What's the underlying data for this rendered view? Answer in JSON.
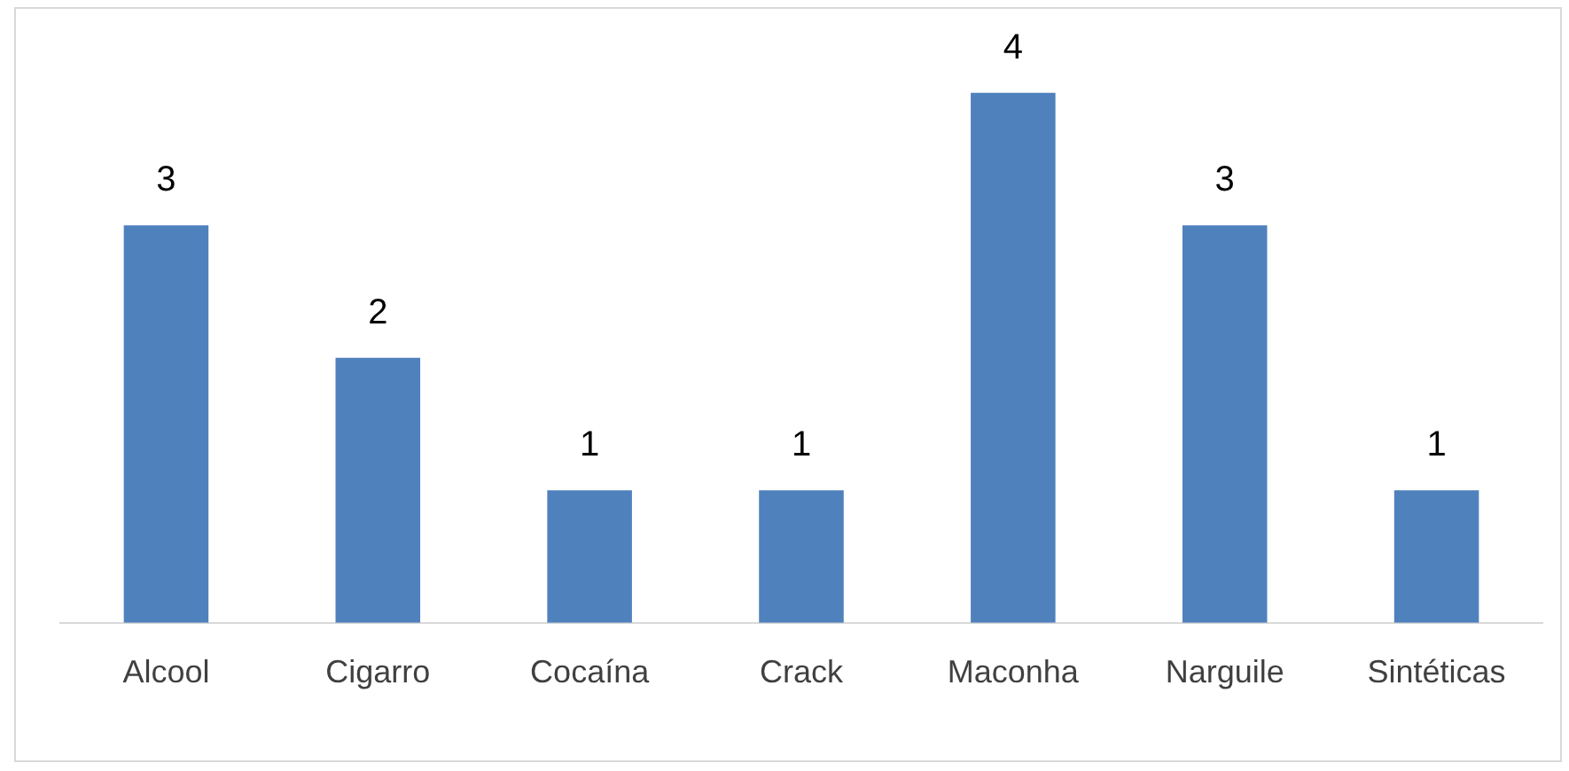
{
  "chart_data": {
    "type": "bar",
    "categories": [
      "Alcool",
      "Cigarro",
      "Cocaína",
      "Crack",
      "Maconha",
      "Narguile",
      "Sintéticas"
    ],
    "values": [
      3,
      2,
      1,
      1,
      4,
      3,
      1
    ],
    "color": "#4f81bd",
    "data_labels": true,
    "grid": false,
    "legend": false
  }
}
